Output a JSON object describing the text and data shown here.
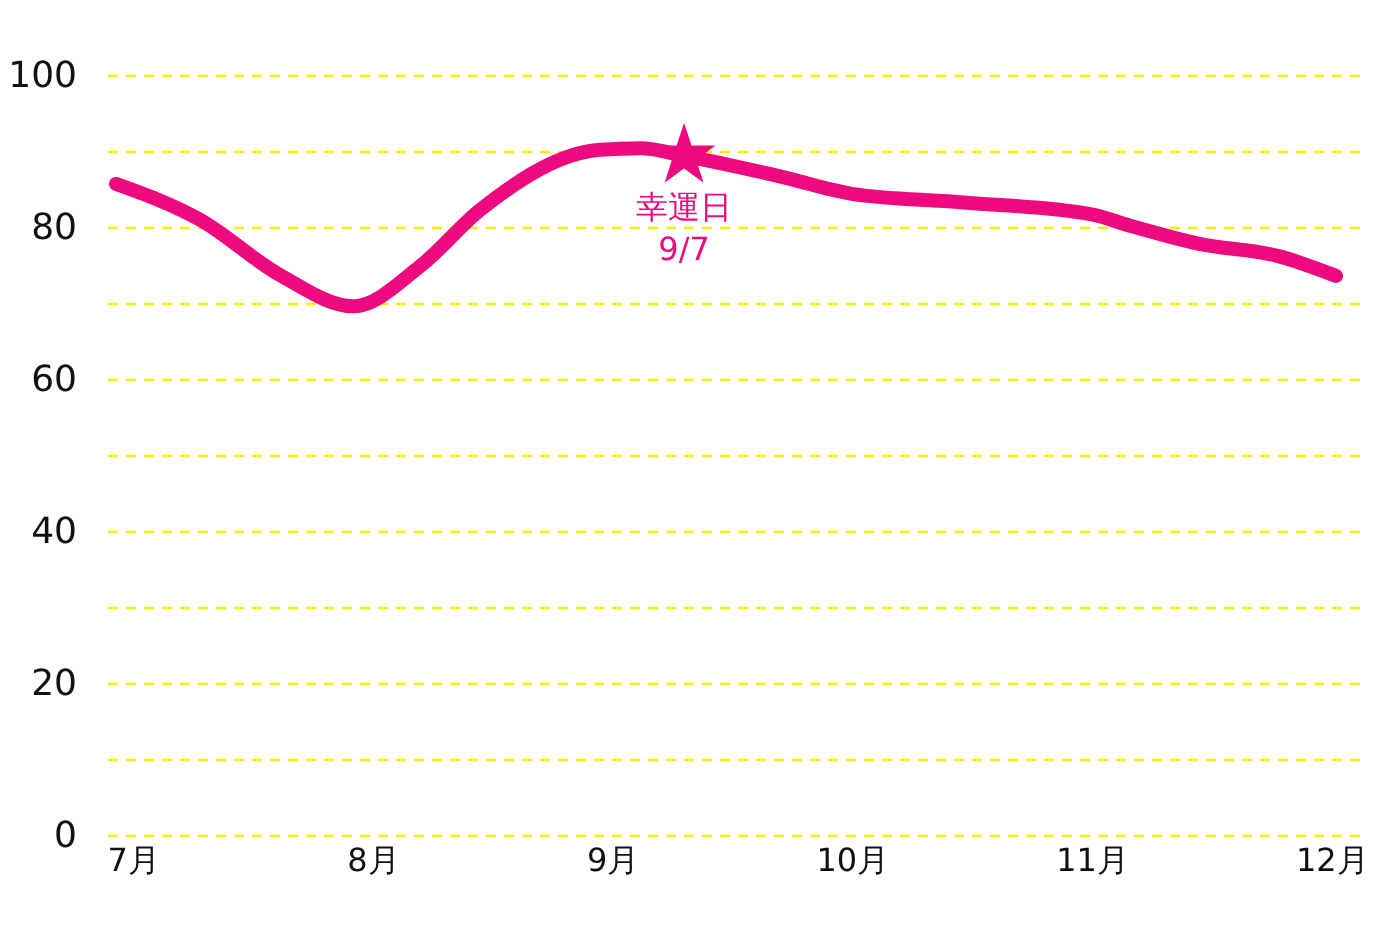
{
  "chart_data": {
    "type": "line",
    "x": [
      6.93,
      7.28,
      7.62,
      7.92,
      8.2,
      8.45,
      8.95,
      9.12,
      9.3,
      9.7,
      10.0,
      10.45,
      11.0,
      11.16,
      11.45,
      11.78,
      12.02
    ],
    "series": [
      {
        "color": "#ec0a7e",
        "values": [
          85.8,
          81.1,
          73.7,
          69.7,
          75.0,
          82.4,
          90.3,
          90.5,
          89.5,
          86.8,
          84.5,
          83.4,
          81.8,
          80.3,
          77.9,
          76.3,
          73.7
        ]
      },
      {
        "type": "scatter",
        "marker": "star",
        "color": "#ec0a7e",
        "x": [
          9.3
        ],
        "values": [
          89.5
        ]
      }
    ],
    "annotations": [
      {
        "text": "幸運日\n9/7",
        "x": 9.3,
        "y": 89.5
      }
    ],
    "xlim": [
      6.88,
      12.12
    ],
    "xticks": [
      {
        "value": 7,
        "label": "7月"
      },
      {
        "value": 8,
        "label": "8月"
      },
      {
        "value": 9,
        "label": "9月"
      },
      {
        "value": 10,
        "label": "10月"
      },
      {
        "value": 11,
        "label": "11月"
      },
      {
        "value": 12,
        "label": "12月"
      }
    ],
    "ylim": [
      0,
      100
    ],
    "yticks": [
      0,
      {
        "value": 10,
        "label": null
      },
      20,
      {
        "value": 30,
        "label": null
      },
      40,
      {
        "value": 50,
        "label": null
      },
      60,
      {
        "value": 70,
        "label": null
      },
      80,
      {
        "value": 90,
        "label": null
      },
      100
    ],
    "grid": "y",
    "marker": "none",
    "line_style": "solid"
  }
}
